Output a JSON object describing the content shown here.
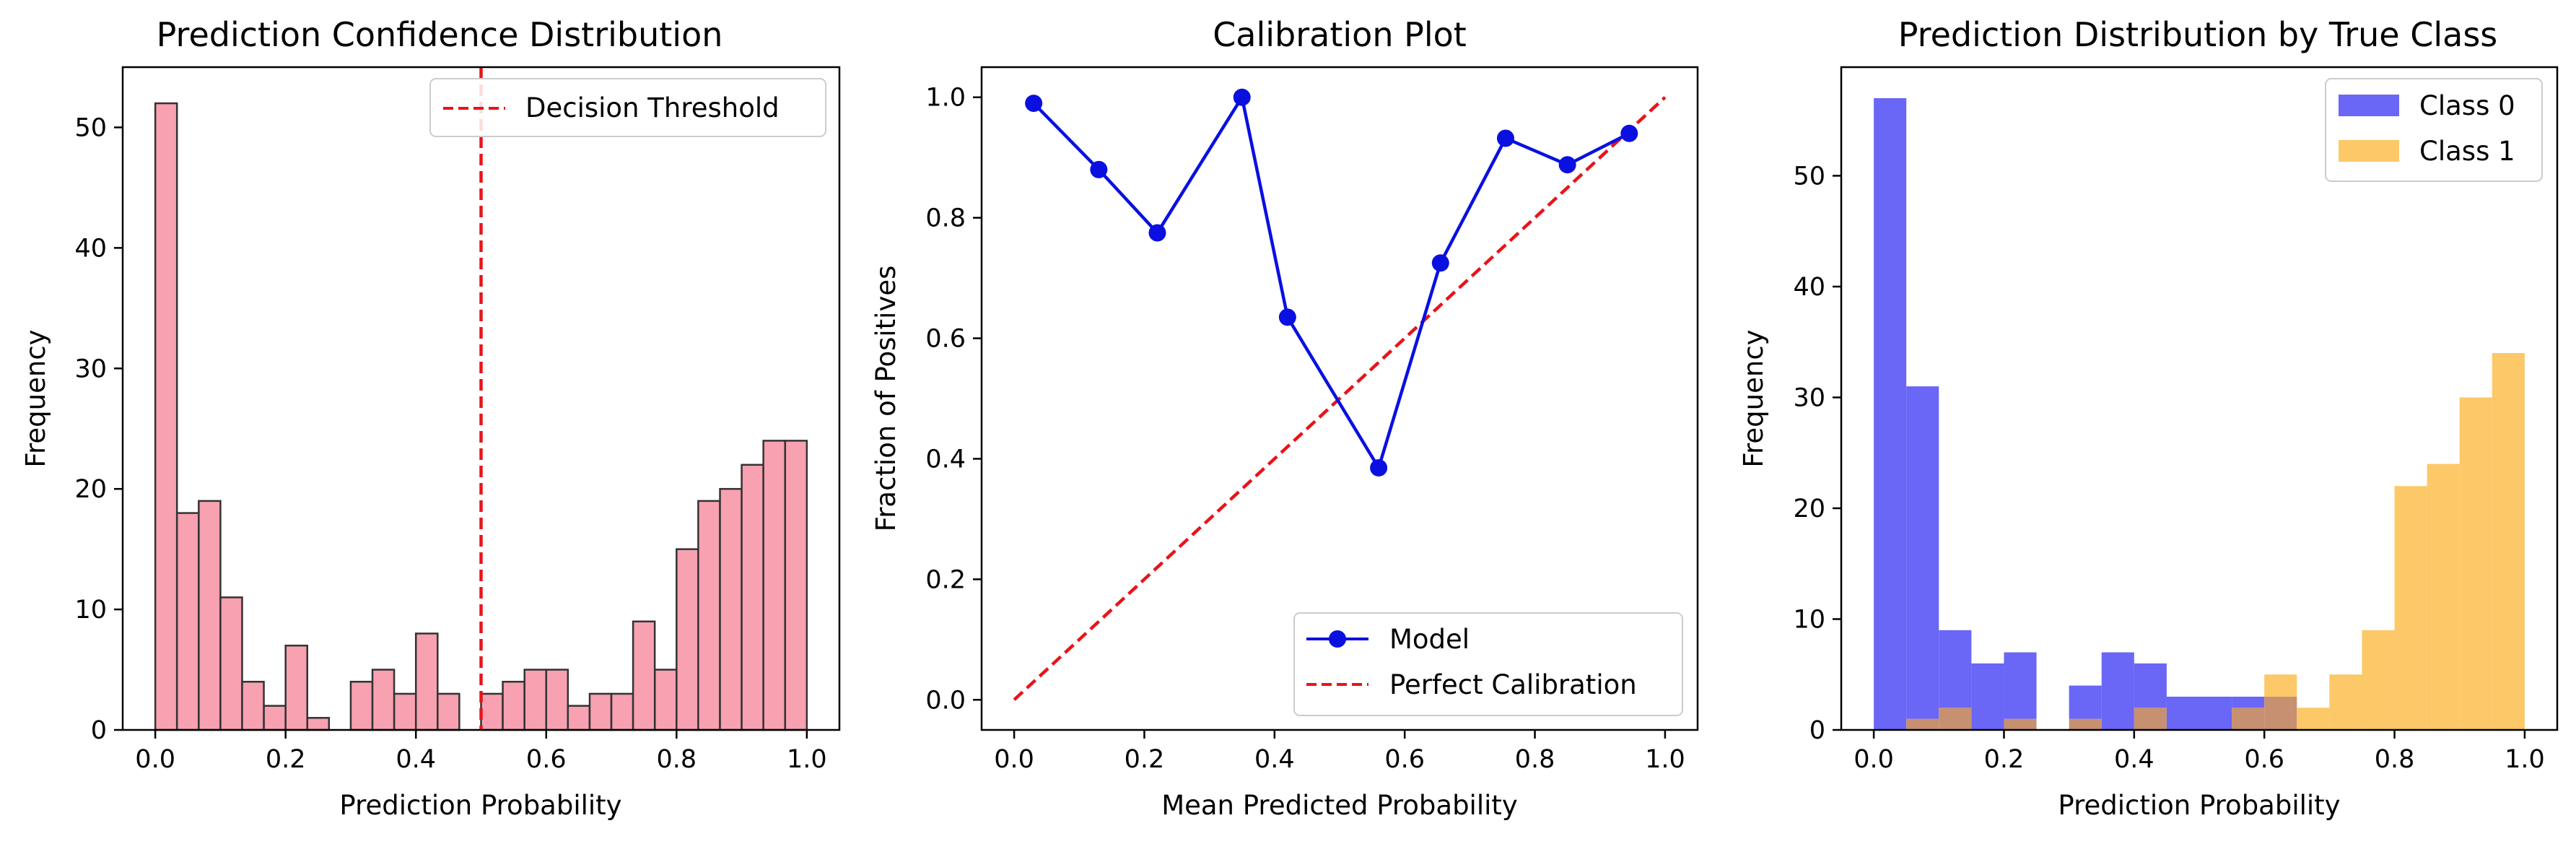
{
  "chart_data": [
    {
      "type": "bar",
      "title": "Prediction Confidence Distribution",
      "xlabel": "Prediction Probability",
      "ylabel": "Frequency",
      "xlim": [
        -0.05,
        1.05
      ],
      "ylim": [
        0,
        55
      ],
      "xticks": [
        "0.0",
        "0.2",
        "0.4",
        "0.6",
        "0.8",
        "1.0"
      ],
      "yticks": [
        "0",
        "10",
        "20",
        "30",
        "40",
        "50"
      ],
      "bin_width": 0.0333,
      "bin_starts": [
        0.0,
        0.0333,
        0.0667,
        0.1,
        0.1333,
        0.1667,
        0.2,
        0.2333,
        0.2667,
        0.3,
        0.3333,
        0.3667,
        0.4,
        0.4333,
        0.4667,
        0.5,
        0.5333,
        0.5667,
        0.6,
        0.6333,
        0.6667,
        0.7,
        0.7333,
        0.7667,
        0.8,
        0.8333,
        0.8667,
        0.9,
        0.9333,
        0.9667
      ],
      "values": [
        52,
        18,
        19,
        11,
        4,
        2,
        7,
        1,
        0,
        4,
        5,
        3,
        8,
        3,
        0,
        3,
        4,
        5,
        5,
        2,
        3,
        3,
        9,
        5,
        15,
        19,
        20,
        22,
        24,
        24
      ],
      "bar_color": "#f7a1b1",
      "edge_color": "#333333",
      "threshold": {
        "value": 0.5,
        "name": "Decision Threshold",
        "color": "#e8141a"
      },
      "legend": "top-right"
    },
    {
      "type": "line",
      "title": "Calibration Plot",
      "xlabel": "Mean Predicted Probability",
      "ylabel": "Fraction of Positives",
      "xlim": [
        -0.05,
        1.05
      ],
      "ylim": [
        -0.05,
        1.05
      ],
      "xticks": [
        "0.0",
        "0.2",
        "0.4",
        "0.6",
        "0.8",
        "1.0"
      ],
      "yticks": [
        "0.0",
        "0.2",
        "0.4",
        "0.6",
        "0.8",
        "1.0"
      ],
      "series": [
        {
          "name": "Model",
          "color": "#0a10e0",
          "marker": "circle",
          "x": [
            0.03,
            0.13,
            0.22,
            0.35,
            0.42,
            0.56,
            0.655,
            0.755,
            0.85,
            0.945
          ],
          "y": [
            0.99,
            0.88,
            0.775,
            1.0,
            0.635,
            0.385,
            0.725,
            0.932,
            0.888,
            0.94
          ]
        },
        {
          "name": "Perfect Calibration",
          "color": "#e8141a",
          "dashed": true,
          "x": [
            0,
            1
          ],
          "y": [
            0,
            1
          ]
        }
      ],
      "legend": "bottom-right"
    },
    {
      "type": "bar",
      "title": "Prediction Distribution by True Class",
      "xlabel": "Prediction Probability",
      "ylabel": "Frequency",
      "xlim": [
        -0.05,
        1.05
      ],
      "ylim": [
        0,
        59.8
      ],
      "xticks": [
        "0.0",
        "0.2",
        "0.4",
        "0.6",
        "0.8",
        "1.0"
      ],
      "yticks": [
        "0",
        "10",
        "20",
        "30",
        "40",
        "50"
      ],
      "bin_width": 0.05,
      "bin_starts": [
        0.0,
        0.05,
        0.1,
        0.15,
        0.2,
        0.25,
        0.3,
        0.35,
        0.4,
        0.45,
        0.5,
        0.55,
        0.6,
        0.65,
        0.7,
        0.75,
        0.8,
        0.85,
        0.9,
        0.95
      ],
      "series": [
        {
          "name": "Class 0",
          "color": "#6a66f6",
          "values": [
            57,
            31,
            9,
            6,
            7,
            0,
            4,
            7,
            6,
            3,
            3,
            3,
            3,
            0,
            0,
            0,
            0,
            0,
            0,
            0
          ]
        },
        {
          "name": "Class 1",
          "color": "#fcc868",
          "values": [
            0,
            1,
            2,
            0,
            1,
            0,
            1,
            0,
            2,
            0,
            0,
            2,
            5,
            2,
            5,
            9,
            22,
            24,
            30,
            34
          ]
        }
      ],
      "overlap_color": "#c79070",
      "legend": "top-right"
    }
  ]
}
